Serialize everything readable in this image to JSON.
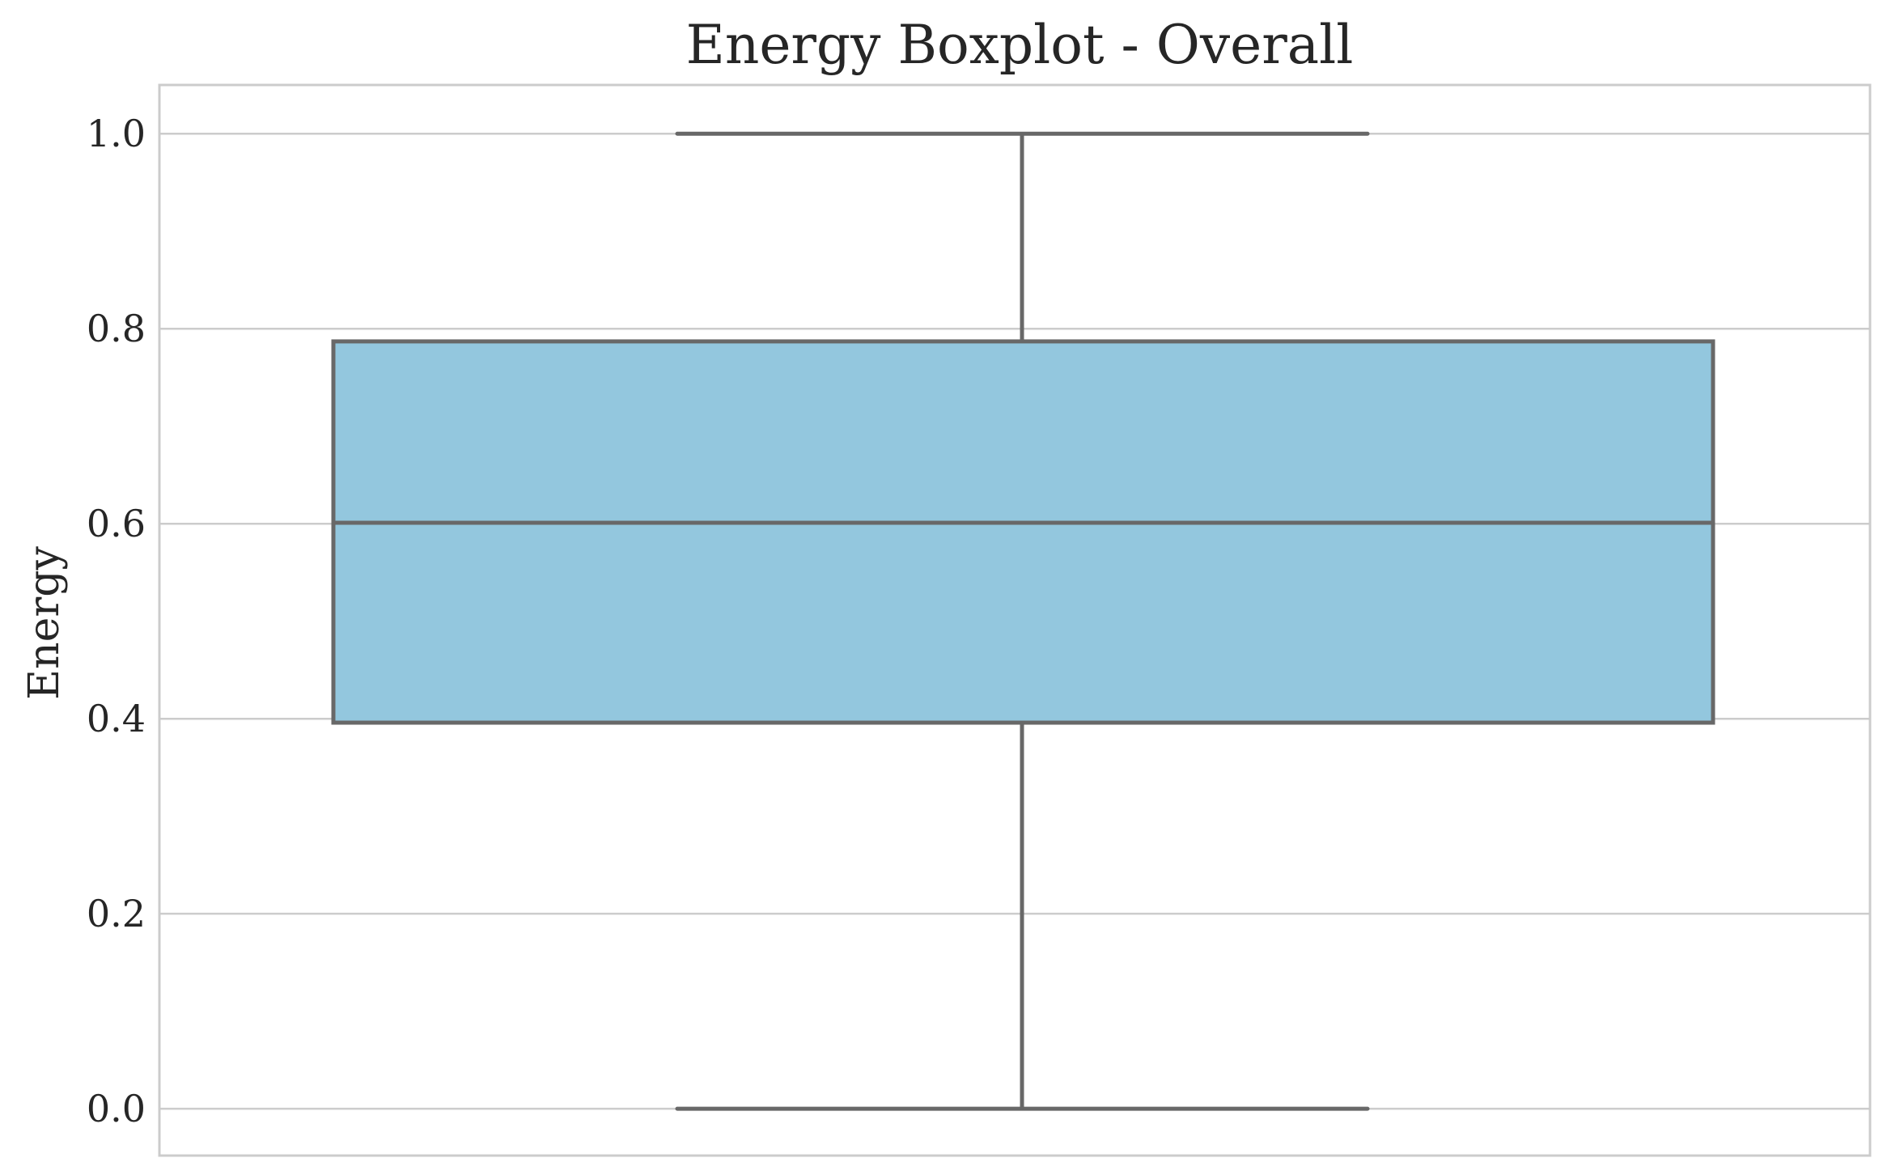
{
  "chart_data": {
    "type": "boxplot",
    "title": "Energy Boxplot - Overall",
    "xlabel": "",
    "ylabel": "Energy",
    "ylim": [
      -0.048,
      1.05
    ],
    "yticks": [
      {
        "value": 0.0,
        "label": "0.0"
      },
      {
        "value": 0.2,
        "label": "0.2"
      },
      {
        "value": 0.4,
        "label": "0.4"
      },
      {
        "value": 0.6,
        "label": "0.6"
      },
      {
        "value": 0.8,
        "label": "0.8"
      },
      {
        "value": 1.0,
        "label": "1.0"
      }
    ],
    "grid": "horizontal",
    "box": {
      "whisker_low": 0.0,
      "q1": 0.396,
      "median": 0.601,
      "q3": 0.787,
      "whisker_high": 1.0
    },
    "colors": {
      "box_fill": "#93c7de",
      "line": "#686868",
      "grid": "#cccccc",
      "frame": "#cccccc"
    }
  }
}
